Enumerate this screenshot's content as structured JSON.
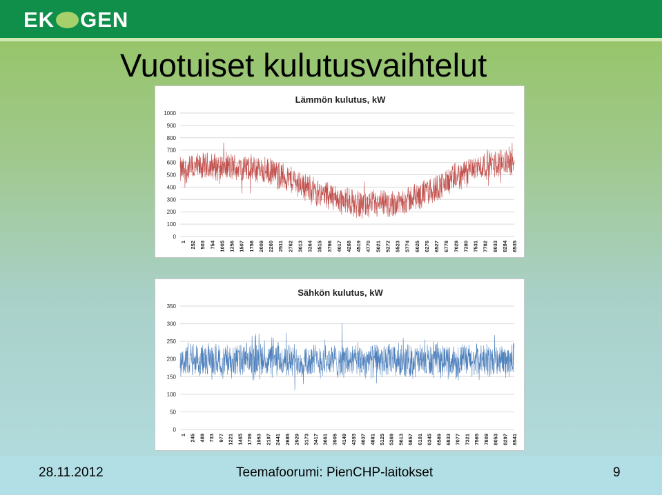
{
  "header": {
    "logo_text_left": "EK",
    "logo_text_right": "GEN"
  },
  "slide": {
    "title": "Vuotuiset kulutusvaihtelut"
  },
  "footer": {
    "date": "28.11.2012",
    "center": "Teemafoorumi: PienCHP-laitokset",
    "page": "9"
  },
  "chart_data": [
    {
      "type": "line",
      "title": "Lämmön kulutus, kW",
      "ylim": [
        0,
        1000
      ],
      "yticks": [
        0,
        100,
        200,
        300,
        400,
        500,
        600,
        700,
        800,
        900,
        1000
      ],
      "xticks": [
        "1",
        "252",
        "503",
        "754",
        "1005",
        "1256",
        "1507",
        "1758",
        "2009",
        "2260",
        "2511",
        "2762",
        "3013",
        "3264",
        "3515",
        "3766",
        "4017",
        "4268",
        "4519",
        "4770",
        "5021",
        "5272",
        "5523",
        "5774",
        "6025",
        "6276",
        "6527",
        "6778",
        "7029",
        "7280",
        "7531",
        "7782",
        "8033",
        "8284",
        "8535"
      ],
      "x_range": [
        1,
        8760
      ],
      "series": [
        {
          "color": "#c0504d",
          "profile_x": [
            1,
            500,
            1000,
            1500,
            2000,
            2500,
            3000,
            3500,
            4000,
            4500,
            5000,
            5500,
            6000,
            6500,
            7000,
            7500,
            8000,
            8500,
            8760
          ],
          "profile_mean": [
            530,
            560,
            570,
            560,
            540,
            510,
            450,
            370,
            320,
            270,
            250,
            260,
            300,
            360,
            440,
            520,
            580,
            600,
            610
          ],
          "band": 130
        }
      ],
      "grid": true
    },
    {
      "type": "line",
      "title": "Sähkön kulutus, kW",
      "ylim": [
        0,
        350
      ],
      "yticks": [
        0,
        50,
        100,
        150,
        200,
        250,
        300,
        350
      ],
      "xticks": [
        "1",
        "245",
        "489",
        "733",
        "977",
        "1221",
        "1465",
        "1709",
        "1953",
        "2197",
        "2441",
        "2685",
        "2929",
        "3173",
        "3417",
        "3661",
        "3905",
        "4149",
        "4393",
        "4637",
        "4881",
        "5125",
        "5369",
        "5613",
        "5857",
        "6101",
        "6345",
        "6589",
        "6833",
        "7077",
        "7321",
        "7565",
        "7809",
        "8053",
        "8297",
        "8541"
      ],
      "x_range": [
        1,
        8760
      ],
      "series": [
        {
          "color": "#4f81bd",
          "profile_x": [
            1,
            8760
          ],
          "profile_mean": [
            195,
            195
          ],
          "band": 55
        }
      ],
      "grid": true
    }
  ]
}
